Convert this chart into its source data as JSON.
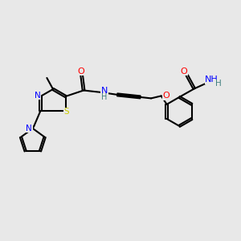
{
  "background_color": "#e8e8e8",
  "atom_colors": {
    "C": "#000000",
    "N": "#0000ff",
    "O": "#ff0000",
    "S": "#cccc00",
    "H": "#408080"
  },
  "figsize": [
    3.0,
    3.0
  ],
  "dpi": 100
}
